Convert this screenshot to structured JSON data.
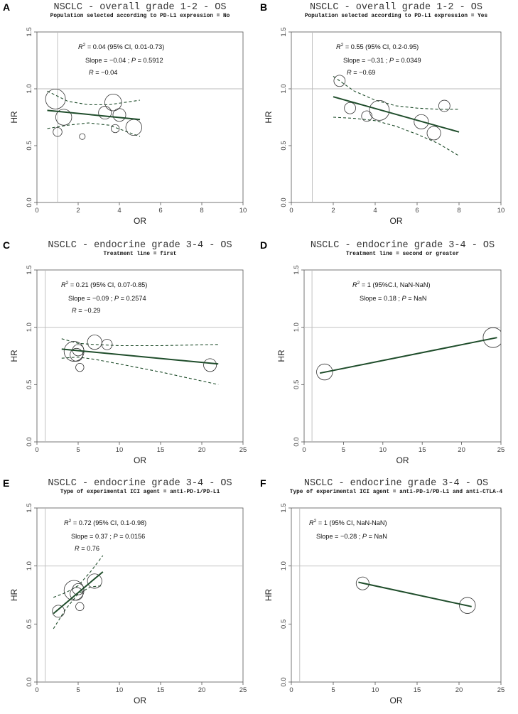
{
  "figure": {
    "description_free": true
  },
  "style": {
    "fit_color": "#1f4d2b",
    "ci_color": "#1f4d2b",
    "point_color": "#333333",
    "axis_color": "#555555",
    "ref_line_color": "#bbbbbb"
  },
  "chart_data": [
    {
      "id": "A",
      "type": "scatter",
      "title": "NSCLC - overall grade 1-2 - OS",
      "subtitle": "Population selected according to PD-L1 expression = No",
      "xlabel": "OR",
      "ylabel": "HR",
      "xlim": [
        0,
        10
      ],
      "ylim": [
        0,
        1.5
      ],
      "xticks": [
        0,
        2,
        4,
        6,
        8,
        10
      ],
      "yticks": [
        0.0,
        0.5,
        1.0,
        1.5
      ],
      "ytick_labels": [
        "0.0",
        "0.5",
        "1.0",
        "1.5"
      ],
      "ref_x": 1,
      "ref_y": 1,
      "stats": {
        "r2_prefix": "R",
        "r2_value": "= 0.04",
        "r2_ci": "(95% CI, 0.01-0.73)",
        "slope_text": "Slope = −0.04 ;",
        "p_label": "P",
        "p_value": "= 0.5912",
        "r_label": "R",
        "r_value": "= −0.04"
      },
      "points": [
        {
          "x": 0.9,
          "y": 0.91,
          "w": 1.0
        },
        {
          "x": 1.0,
          "y": 0.62,
          "w": 0.3
        },
        {
          "x": 1.3,
          "y": 0.75,
          "w": 0.75
        },
        {
          "x": 2.2,
          "y": 0.58,
          "w": 0.1
        },
        {
          "x": 3.3,
          "y": 0.79,
          "w": 0.55
        },
        {
          "x": 3.7,
          "y": 0.88,
          "w": 0.8
        },
        {
          "x": 3.8,
          "y": 0.65,
          "w": 0.25
        },
        {
          "x": 4.0,
          "y": 0.77,
          "w": 0.55
        },
        {
          "x": 4.7,
          "y": 0.66,
          "w": 0.75
        }
      ],
      "fit": {
        "x": [
          0.5,
          5.0
        ],
        "y": [
          0.81,
          0.73
        ]
      },
      "ci_upper": {
        "x": [
          0.5,
          1.5,
          2.5,
          3.5,
          5.0
        ],
        "y": [
          0.98,
          0.89,
          0.86,
          0.86,
          0.9
        ]
      },
      "ci_lower": {
        "x": [
          0.5,
          1.5,
          2.5,
          3.5,
          5.0
        ],
        "y": [
          0.65,
          0.68,
          0.7,
          0.68,
          0.58
        ]
      }
    },
    {
      "id": "B",
      "type": "scatter",
      "title": "NSCLC - overall grade 1-2 - OS",
      "subtitle": "Population selected according to PD-L1 expression = Yes",
      "xlabel": "OR",
      "ylabel": "HR",
      "xlim": [
        0,
        10
      ],
      "ylim": [
        0,
        1.5
      ],
      "xticks": [
        0,
        2,
        4,
        6,
        8,
        10
      ],
      "yticks": [
        0.0,
        0.5,
        1.0,
        1.5
      ],
      "ytick_labels": [
        "0.0",
        "0.5",
        "1.0",
        "1.5"
      ],
      "ref_x": 1,
      "ref_y": 1,
      "stats": {
        "r2_prefix": "R",
        "r2_value": "= 0.55",
        "r2_ci": "(95% CI, 0.2-0.95)",
        "slope_text": "Slope = −0.31 ;",
        "p_label": "P",
        "p_value": "= 0.0349",
        "r_label": "R",
        "r_value": "= −0.69"
      },
      "points": [
        {
          "x": 2.3,
          "y": 1.07,
          "w": 0.45
        },
        {
          "x": 2.8,
          "y": 0.83,
          "w": 0.45
        },
        {
          "x": 3.6,
          "y": 0.76,
          "w": 0.4
        },
        {
          "x": 4.2,
          "y": 0.81,
          "w": 1.0
        },
        {
          "x": 6.2,
          "y": 0.71,
          "w": 0.65
        },
        {
          "x": 6.8,
          "y": 0.61,
          "w": 0.6
        },
        {
          "x": 7.3,
          "y": 0.85,
          "w": 0.45
        }
      ],
      "fit": {
        "x": [
          2.0,
          8.0
        ],
        "y": [
          0.93,
          0.62
        ]
      },
      "ci_upper": {
        "x": [
          2.0,
          3.0,
          4.0,
          5.0,
          6.0,
          7.0,
          8.0
        ],
        "y": [
          1.11,
          0.98,
          0.9,
          0.85,
          0.83,
          0.82,
          0.82
        ]
      },
      "ci_lower": {
        "x": [
          2.0,
          3.0,
          4.0,
          5.0,
          6.0,
          7.0,
          8.0
        ],
        "y": [
          0.75,
          0.74,
          0.72,
          0.67,
          0.6,
          0.52,
          0.41
        ]
      }
    },
    {
      "id": "C",
      "type": "scatter",
      "title": "NSCLC - endocrine grade 3-4 - OS",
      "subtitle": "Treatment line = first",
      "xlabel": "OR",
      "ylabel": "HR",
      "xlim": [
        0,
        25
      ],
      "ylim": [
        0,
        1.5
      ],
      "xticks": [
        0,
        5,
        10,
        15,
        20,
        25
      ],
      "yticks": [
        0.0,
        0.5,
        1.0,
        1.5
      ],
      "ytick_labels": [
        "0.0",
        "0.5",
        "1.0",
        "1.5"
      ],
      "ref_x": 1,
      "ref_y": 1,
      "stats": {
        "r2_prefix": "R",
        "r2_value": "= 0.21",
        "r2_ci": "(95% CI, 0.07-0.85)",
        "slope_text": "Slope = −0.09 ;",
        "p_label": "P",
        "p_value": "= 0.2574",
        "r_label": "R",
        "r_value": "= −0.29"
      },
      "points": [
        {
          "x": 4.5,
          "y": 0.79,
          "w": 1.0
        },
        {
          "x": 4.8,
          "y": 0.76,
          "w": 0.55
        },
        {
          "x": 5.0,
          "y": 0.8,
          "w": 0.45
        },
        {
          "x": 5.2,
          "y": 0.65,
          "w": 0.25
        },
        {
          "x": 7.0,
          "y": 0.87,
          "w": 0.65
        },
        {
          "x": 8.5,
          "y": 0.85,
          "w": 0.4
        },
        {
          "x": 21.0,
          "y": 0.67,
          "w": 0.55
        }
      ],
      "fit": {
        "x": [
          3.0,
          22.0
        ],
        "y": [
          0.81,
          0.68
        ]
      },
      "ci_upper": {
        "x": [
          3.0,
          5.0,
          7.0,
          10.0,
          15.0,
          22.0
        ],
        "y": [
          0.9,
          0.86,
          0.85,
          0.84,
          0.84,
          0.85
        ]
      },
      "ci_lower": {
        "x": [
          3.0,
          5.0,
          7.0,
          10.0,
          15.0,
          22.0
        ],
        "y": [
          0.73,
          0.74,
          0.72,
          0.68,
          0.61,
          0.5
        ]
      }
    },
    {
      "id": "D",
      "type": "scatter",
      "title": "NSCLC - endocrine grade 3-4 - OS",
      "subtitle": "Treatment line = second or greater",
      "xlabel": "OR",
      "ylabel": "HR",
      "xlim": [
        0,
        25
      ],
      "ylim": [
        0,
        1.5
      ],
      "xticks": [
        0,
        5,
        10,
        15,
        20,
        25
      ],
      "yticks": [
        0.0,
        0.5,
        1.0,
        1.5
      ],
      "ytick_labels": [
        "0.0",
        "0.5",
        "1.0",
        "1.5"
      ],
      "ref_x": 1,
      "ref_y": 1,
      "stats": {
        "r2_prefix": "R",
        "r2_value": "= 1",
        "r2_ci": "(95%C.I, NaN-NaN)",
        "slope_text": "Slope = 0.18 ;",
        "p_label": "P",
        "p_value": "= NaN"
      },
      "points": [
        {
          "x": 2.6,
          "y": 0.61,
          "w": 0.75
        },
        {
          "x": 24.0,
          "y": 0.91,
          "w": 1.0
        }
      ],
      "fit": {
        "x": [
          2.0,
          24.5
        ],
        "y": [
          0.6,
          0.91
        ]
      }
    },
    {
      "id": "E",
      "type": "scatter",
      "title": "NSCLC - endocrine grade 3-4 - OS",
      "subtitle": "Type of experimental ICI agent = anti-PD-1/PD-L1",
      "xlabel": "OR",
      "ylabel": "HR",
      "xlim": [
        0,
        25
      ],
      "ylim": [
        0,
        1.5
      ],
      "xticks": [
        0,
        5,
        10,
        15,
        20,
        25
      ],
      "yticks": [
        0.0,
        0.5,
        1.0,
        1.5
      ],
      "ytick_labels": [
        "0.0",
        "0.5",
        "1.0",
        "1.5"
      ],
      "ref_x": 1,
      "ref_y": 1,
      "stats": {
        "r2_prefix": "R",
        "r2_value": "= 0.72",
        "r2_ci": "(95% CI, 0.1-0.98)",
        "slope_text": "Slope = 0.37 ;",
        "p_label": "P",
        "p_value": "= 0.0156",
        "r_label": "R",
        "r_value": "= 0.76"
      },
      "points": [
        {
          "x": 2.6,
          "y": 0.61,
          "w": 0.5
        },
        {
          "x": 4.5,
          "y": 0.79,
          "w": 1.0
        },
        {
          "x": 4.8,
          "y": 0.76,
          "w": 0.55
        },
        {
          "x": 5.0,
          "y": 0.8,
          "w": 0.45
        },
        {
          "x": 5.2,
          "y": 0.65,
          "w": 0.25
        },
        {
          "x": 7.0,
          "y": 0.87,
          "w": 0.65
        }
      ],
      "fit": {
        "x": [
          2.0,
          8.0
        ],
        "y": [
          0.59,
          0.95
        ]
      },
      "ci_upper": {
        "x": [
          2.0,
          3.5,
          5.0,
          6.5,
          8.0
        ],
        "y": [
          0.73,
          0.77,
          0.83,
          0.95,
          1.09
        ]
      },
      "ci_lower": {
        "x": [
          2.0,
          3.5,
          5.0,
          6.5,
          8.0
        ],
        "y": [
          0.46,
          0.63,
          0.76,
          0.82,
          0.83
        ]
      }
    },
    {
      "id": "F",
      "type": "scatter",
      "title": "NSCLC - endocrine grade 3-4 - OS",
      "subtitle": "Type of experimental ICI agent = anti-PD-1/PD-L1 and anti-CTLA-4",
      "xlabel": "OR",
      "ylabel": "HR",
      "xlim": [
        0,
        25
      ],
      "ylim": [
        0,
        1.5
      ],
      "xticks": [
        0,
        5,
        10,
        15,
        20,
        25
      ],
      "yticks": [
        0.0,
        0.5,
        1.0,
        1.5
      ],
      "ytick_labels": [
        "0.0",
        "0.5",
        "1.0",
        "1.5"
      ],
      "ref_x": 1,
      "ref_y": 1,
      "stats": {
        "r2_prefix": "R",
        "r2_value": "= 1",
        "r2_ci": "(95% CI, NaN-NaN)",
        "slope_text": "Slope = −0.28 ;",
        "p_label": "P",
        "p_value": "= NaN"
      },
      "points": [
        {
          "x": 8.5,
          "y": 0.85,
          "w": 0.55
        },
        {
          "x": 21.0,
          "y": 0.66,
          "w": 0.75
        }
      ],
      "fit": {
        "x": [
          8.0,
          21.5
        ],
        "y": [
          0.86,
          0.65
        ]
      }
    }
  ]
}
